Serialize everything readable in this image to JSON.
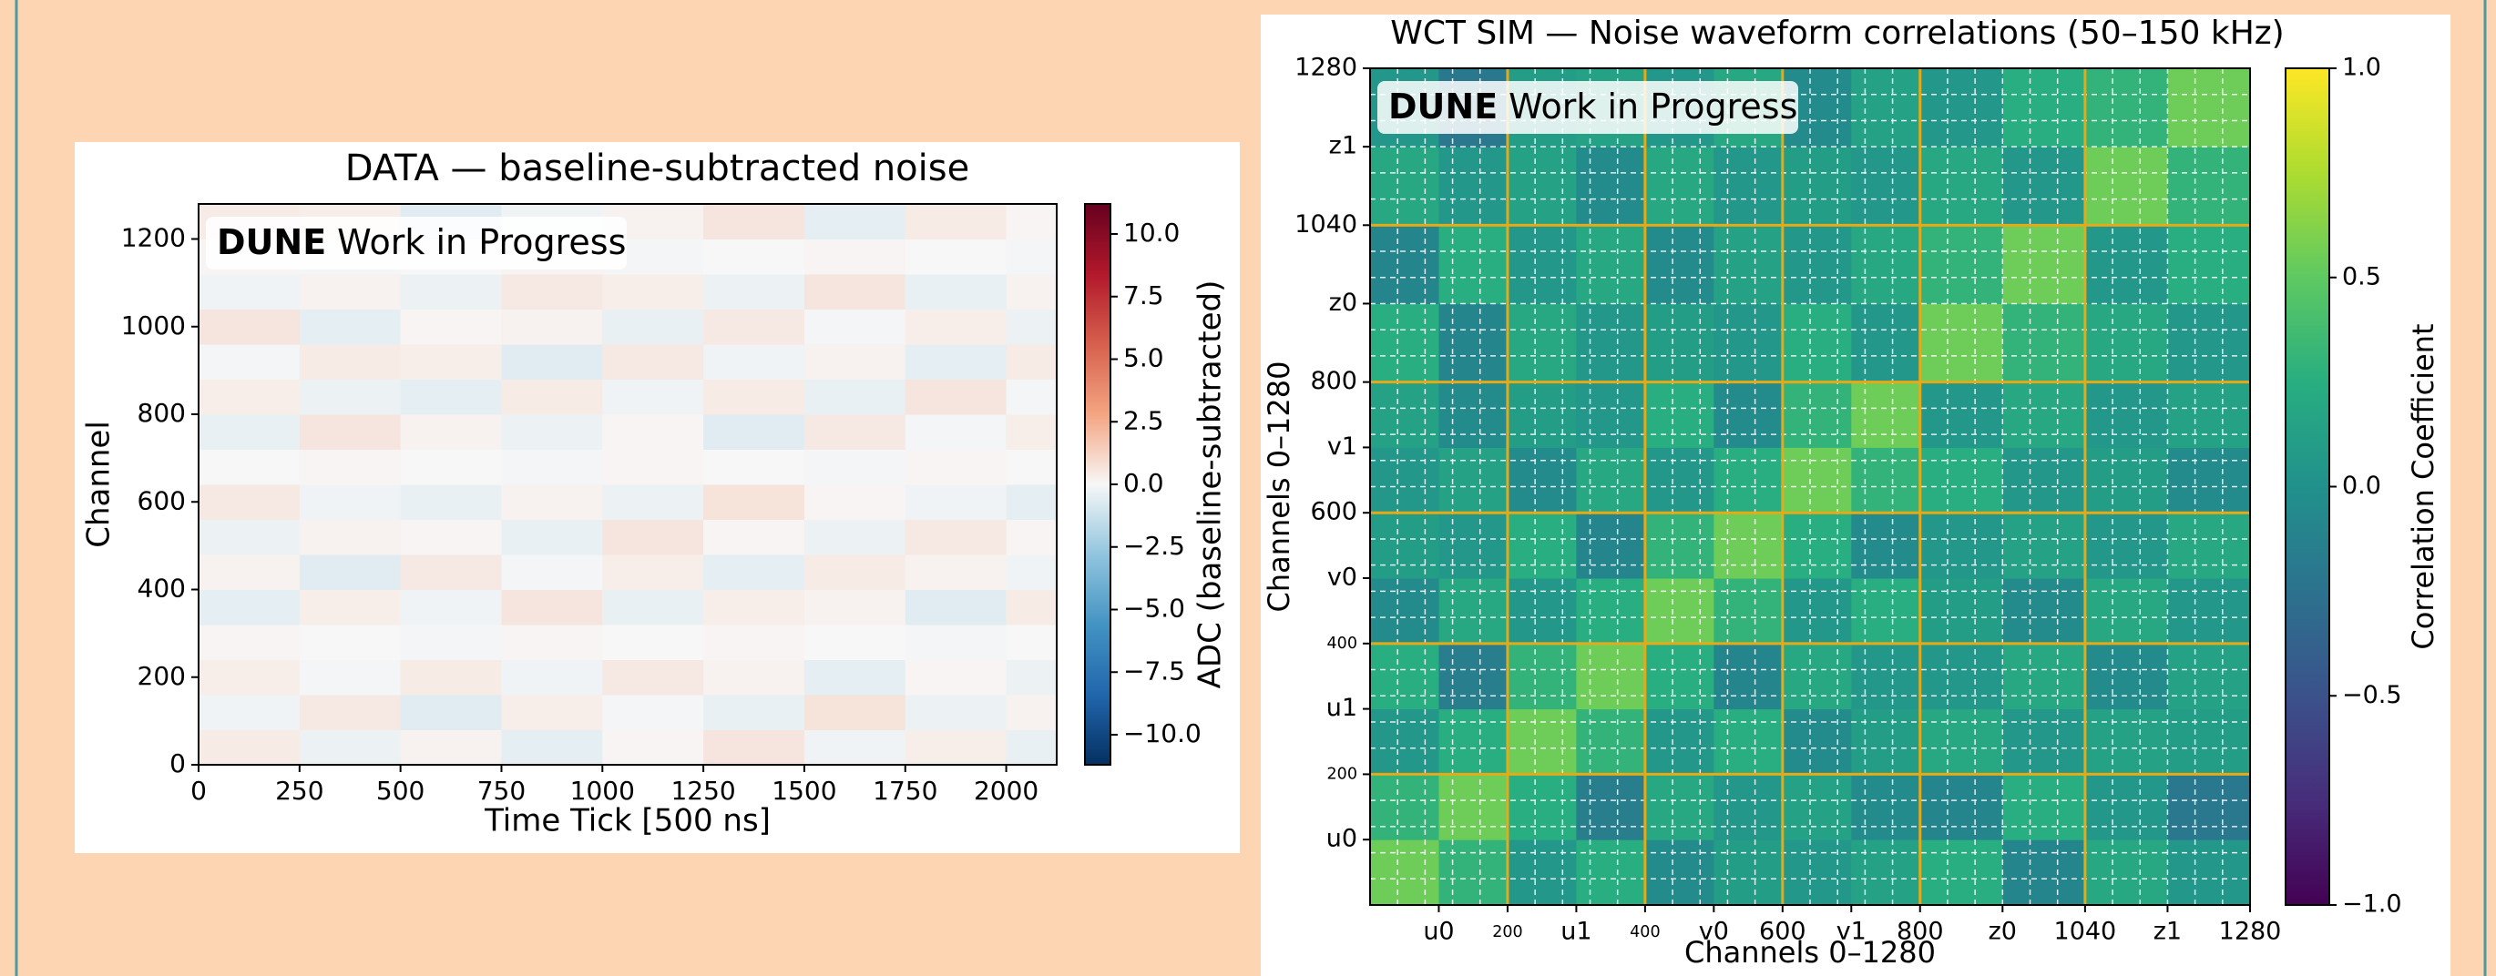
{
  "chart_data": [
    {
      "type": "heatmap",
      "title": "DATA — baseline-subtracted noise",
      "xlabel": "Time Tick [500 ns]",
      "ylabel": "Channel",
      "annotation": [
        "DUNE",
        "Work in Progress"
      ],
      "xlim": [
        0,
        2125
      ],
      "ylim": [
        0,
        1280
      ],
      "xticks": [
        0,
        250,
        500,
        750,
        1000,
        1250,
        1500,
        1750,
        2000
      ],
      "yticks": [
        0,
        200,
        400,
        600,
        800,
        1000,
        1200
      ],
      "x_bins": [
        0,
        250,
        500,
        750,
        1000,
        1250,
        1500,
        1750,
        2000,
        2125
      ],
      "y_bins": [
        0,
        80,
        160,
        240,
        320,
        400,
        480,
        560,
        640,
        720,
        800,
        880,
        960,
        1040,
        1120,
        1200,
        1280
      ],
      "colormap": "RdBu_r",
      "values": [
        [
          0.4,
          -0.3,
          0.2,
          -0.5,
          0.1,
          0.6,
          -0.2,
          0.3,
          -0.4
        ],
        [
          -0.2,
          0.5,
          -0.6,
          0.3,
          -0.1,
          -0.4,
          0.7,
          -0.3,
          0.2
        ],
        [
          0.3,
          -0.1,
          0.4,
          -0.2,
          0.5,
          0.2,
          -0.5,
          0.1,
          -0.3
        ],
        [
          0.1,
          0.0,
          -0.1,
          0.1,
          0.0,
          0.1,
          0.0,
          -0.1,
          0.0
        ],
        [
          -0.5,
          0.3,
          -0.2,
          0.6,
          -0.4,
          0.3,
          0.2,
          -0.6,
          0.4
        ],
        [
          0.2,
          -0.6,
          0.5,
          -0.1,
          0.3,
          -0.5,
          0.4,
          0.2,
          -0.2
        ],
        [
          -0.3,
          0.2,
          0.1,
          -0.4,
          0.6,
          0.1,
          -0.3,
          0.5,
          0.1
        ],
        [
          0.5,
          -0.2,
          -0.4,
          0.2,
          -0.3,
          0.7,
          0.1,
          -0.2,
          -0.5
        ],
        [
          0.0,
          0.1,
          0.0,
          -0.1,
          0.1,
          0.0,
          -0.1,
          0.1,
          0.0
        ],
        [
          -0.4,
          0.6,
          0.2,
          -0.3,
          0.1,
          -0.6,
          0.5,
          -0.1,
          0.3
        ],
        [
          0.3,
          -0.3,
          -0.5,
          0.4,
          -0.2,
          0.4,
          -0.4,
          0.6,
          -0.1
        ],
        [
          -0.1,
          0.4,
          0.3,
          -0.6,
          0.5,
          -0.2,
          0.2,
          -0.5,
          0.4
        ],
        [
          0.6,
          -0.5,
          0.1,
          0.2,
          -0.4,
          0.5,
          -0.1,
          0.3,
          -0.3
        ],
        [
          -0.2,
          0.2,
          -0.3,
          0.5,
          0.3,
          -0.3,
          0.6,
          -0.4,
          0.2
        ],
        [
          0.1,
          -0.1,
          0.0,
          0.1,
          -0.1,
          0.0,
          0.1,
          0.0,
          -0.1
        ],
        [
          0.4,
          0.3,
          -0.6,
          -0.2,
          0.2,
          0.6,
          -0.5,
          0.4,
          0.1
        ]
      ],
      "colorbar": {
        "label": "ADC (baseline-subtracted)",
        "lim": [
          -11.2,
          11.2
        ],
        "ticks": [
          {
            "value": -10,
            "label": "−10.0"
          },
          {
            "value": -7.5,
            "label": "−7.5"
          },
          {
            "value": -5,
            "label": "−5.0"
          },
          {
            "value": -2.5,
            "label": "−2.5"
          },
          {
            "value": 0,
            "label": "0.0"
          },
          {
            "value": 2.5,
            "label": "2.5"
          },
          {
            "value": 5,
            "label": "5.0"
          },
          {
            "value": 7.5,
            "label": "7.5"
          },
          {
            "value": 10,
            "label": "10.0"
          }
        ]
      }
    },
    {
      "type": "heatmap",
      "title": "WCT SIM — Noise waveform correlations (50–150 kHz)",
      "xlabel": "Channels 0–1280",
      "ylabel": "Channels 0–1280",
      "annotation": [
        "DUNE",
        "Work in Progress"
      ],
      "xlim": [
        0,
        1280
      ],
      "ylim": [
        0,
        1280
      ],
      "xticks": [
        {
          "value": 100,
          "label": "u0"
        },
        200,
        {
          "value": 300,
          "label": "u1"
        },
        400,
        {
          "value": 500,
          "label": "v0"
        },
        600,
        {
          "value": 700,
          "label": "v1"
        },
        800,
        {
          "value": 920,
          "label": "z0"
        },
        1040,
        {
          "value": 1160,
          "label": "z1"
        },
        1280
      ],
      "yticks": [
        {
          "value": 100,
          "label": "u0"
        },
        200,
        {
          "value": 300,
          "label": "u1"
        },
        400,
        {
          "value": 500,
          "label": "v0"
        },
        600,
        {
          "value": 700,
          "label": "v1"
        },
        800,
        {
          "value": 920,
          "label": "z0"
        },
        1040,
        {
          "value": 1160,
          "label": "z1"
        },
        1280
      ],
      "small_ticks": [
        200,
        400
      ],
      "boundaries": [
        200,
        400,
        600,
        800,
        1040
      ],
      "boundary_color": "#e8a917",
      "minor_grid": [
        40,
        80,
        120,
        160,
        240,
        280,
        320,
        360,
        440,
        480,
        520,
        560,
        640,
        680,
        720,
        760,
        840,
        880,
        920,
        960,
        1000,
        1080,
        1120,
        1160,
        1200,
        1240
      ],
      "x_bins": [
        0,
        100,
        200,
        300,
        400,
        500,
        600,
        700,
        800,
        920,
        1040,
        1160,
        1280
      ],
      "y_bins": [
        0,
        100,
        200,
        300,
        400,
        500,
        600,
        700,
        800,
        920,
        1040,
        1160,
        1280
      ],
      "colormap": "viridis",
      "values": [
        [
          0.55,
          0.3,
          0.05,
          0.25,
          -0.05,
          0.1,
          0.05,
          0.15,
          0.25,
          -0.1,
          0.2,
          0.05
        ],
        [
          0.3,
          0.55,
          0.25,
          -0.15,
          0.2,
          0.05,
          0.15,
          -0.05,
          -0.1,
          0.25,
          0.05,
          -0.2
        ],
        [
          0.05,
          0.25,
          0.55,
          0.3,
          0.05,
          0.25,
          -0.05,
          0.1,
          0.2,
          0.05,
          0.15,
          0.1
        ],
        [
          0.25,
          -0.15,
          0.3,
          0.55,
          0.25,
          -0.1,
          0.2,
          0.05,
          0.05,
          0.2,
          -0.05,
          0.15
        ],
        [
          -0.05,
          0.2,
          0.05,
          0.25,
          0.55,
          0.3,
          0.05,
          0.25,
          0.1,
          -0.05,
          0.2,
          0.05
        ],
        [
          0.1,
          0.05,
          0.25,
          -0.1,
          0.3,
          0.55,
          0.25,
          -0.05,
          0.05,
          0.15,
          0.05,
          0.2
        ],
        [
          0.05,
          0.15,
          -0.05,
          0.2,
          0.05,
          0.25,
          0.55,
          0.3,
          0.25,
          0.05,
          0.1,
          -0.05
        ],
        [
          0.15,
          -0.05,
          0.1,
          0.05,
          0.25,
          -0.05,
          0.3,
          0.55,
          0.05,
          0.2,
          0.05,
          0.15
        ],
        [
          0.25,
          -0.1,
          0.2,
          0.05,
          0.1,
          0.05,
          0.25,
          0.05,
          0.55,
          0.3,
          0.2,
          0.05
        ],
        [
          -0.1,
          0.25,
          0.05,
          0.2,
          -0.05,
          0.15,
          0.05,
          0.2,
          0.3,
          0.55,
          0.05,
          0.25
        ],
        [
          0.2,
          0.05,
          0.15,
          -0.05,
          0.2,
          0.05,
          0.1,
          0.05,
          0.2,
          0.05,
          0.55,
          0.3
        ],
        [
          0.05,
          -0.2,
          0.1,
          0.15,
          0.05,
          0.2,
          -0.05,
          0.15,
          0.05,
          0.25,
          0.3,
          0.55
        ]
      ],
      "colorbar": {
        "label": "Correlation Coefficient",
        "lim": [
          -1,
          1
        ],
        "ticks": [
          {
            "value": -1,
            "label": "−1.0"
          },
          {
            "value": -0.5,
            "label": "−0.5"
          },
          {
            "value": 0,
            "label": "0.0"
          },
          {
            "value": 0.5,
            "label": "0.5"
          },
          {
            "value": 1,
            "label": "1.0"
          }
        ]
      }
    }
  ]
}
